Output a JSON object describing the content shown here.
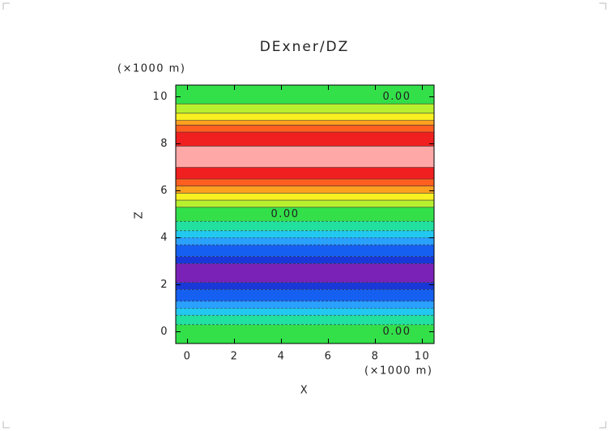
{
  "chart_data": {
    "type": "contour",
    "title": "DExner/DZ",
    "xlabel": "X",
    "ylabel": "Z",
    "xunit": "(×1000 m)",
    "yunit": "(×1000 m)",
    "xlim": [
      -0.5,
      10.5
    ],
    "ylim": [
      -0.5,
      10.5
    ],
    "xticks": [
      0,
      2,
      4,
      6,
      8,
      10
    ],
    "yticks": [
      0,
      2,
      4,
      6,
      8,
      10
    ],
    "edges": [
      -0.5,
      0.3,
      0.7,
      1.0,
      1.3,
      1.8,
      2.1,
      2.9,
      3.2,
      3.7,
      4.0,
      4.3,
      4.7,
      5.3,
      5.6,
      5.9,
      6.2,
      6.5,
      7.0,
      7.9,
      8.5,
      8.8,
      9.0,
      9.3,
      9.7,
      10.5
    ],
    "colors": [
      "#33e04a",
      "#22e0a0",
      "#22c8f0",
      "#2aa0ff",
      "#1560f0",
      "#1838d8",
      "#7a22b8",
      "#1838d8",
      "#1560f0",
      "#2aa0ff",
      "#22c8f0",
      "#22e0a0",
      "#33e04a",
      "#b8f030",
      "#f8f020",
      "#ffa020",
      "#ff6020",
      "#f02020",
      "#ffa8a8",
      "#f02020",
      "#ff6020",
      "#ffa020",
      "#f8f020",
      "#b8f030",
      "#33e04a"
    ],
    "contour_labels": [
      {
        "label": "0.00",
        "value": 0,
        "z": 10.0
      },
      {
        "label": "0.00",
        "value": 0,
        "z": 5.0
      },
      {
        "label": "0.00",
        "value": 0,
        "z": 0.0
      }
    ]
  }
}
